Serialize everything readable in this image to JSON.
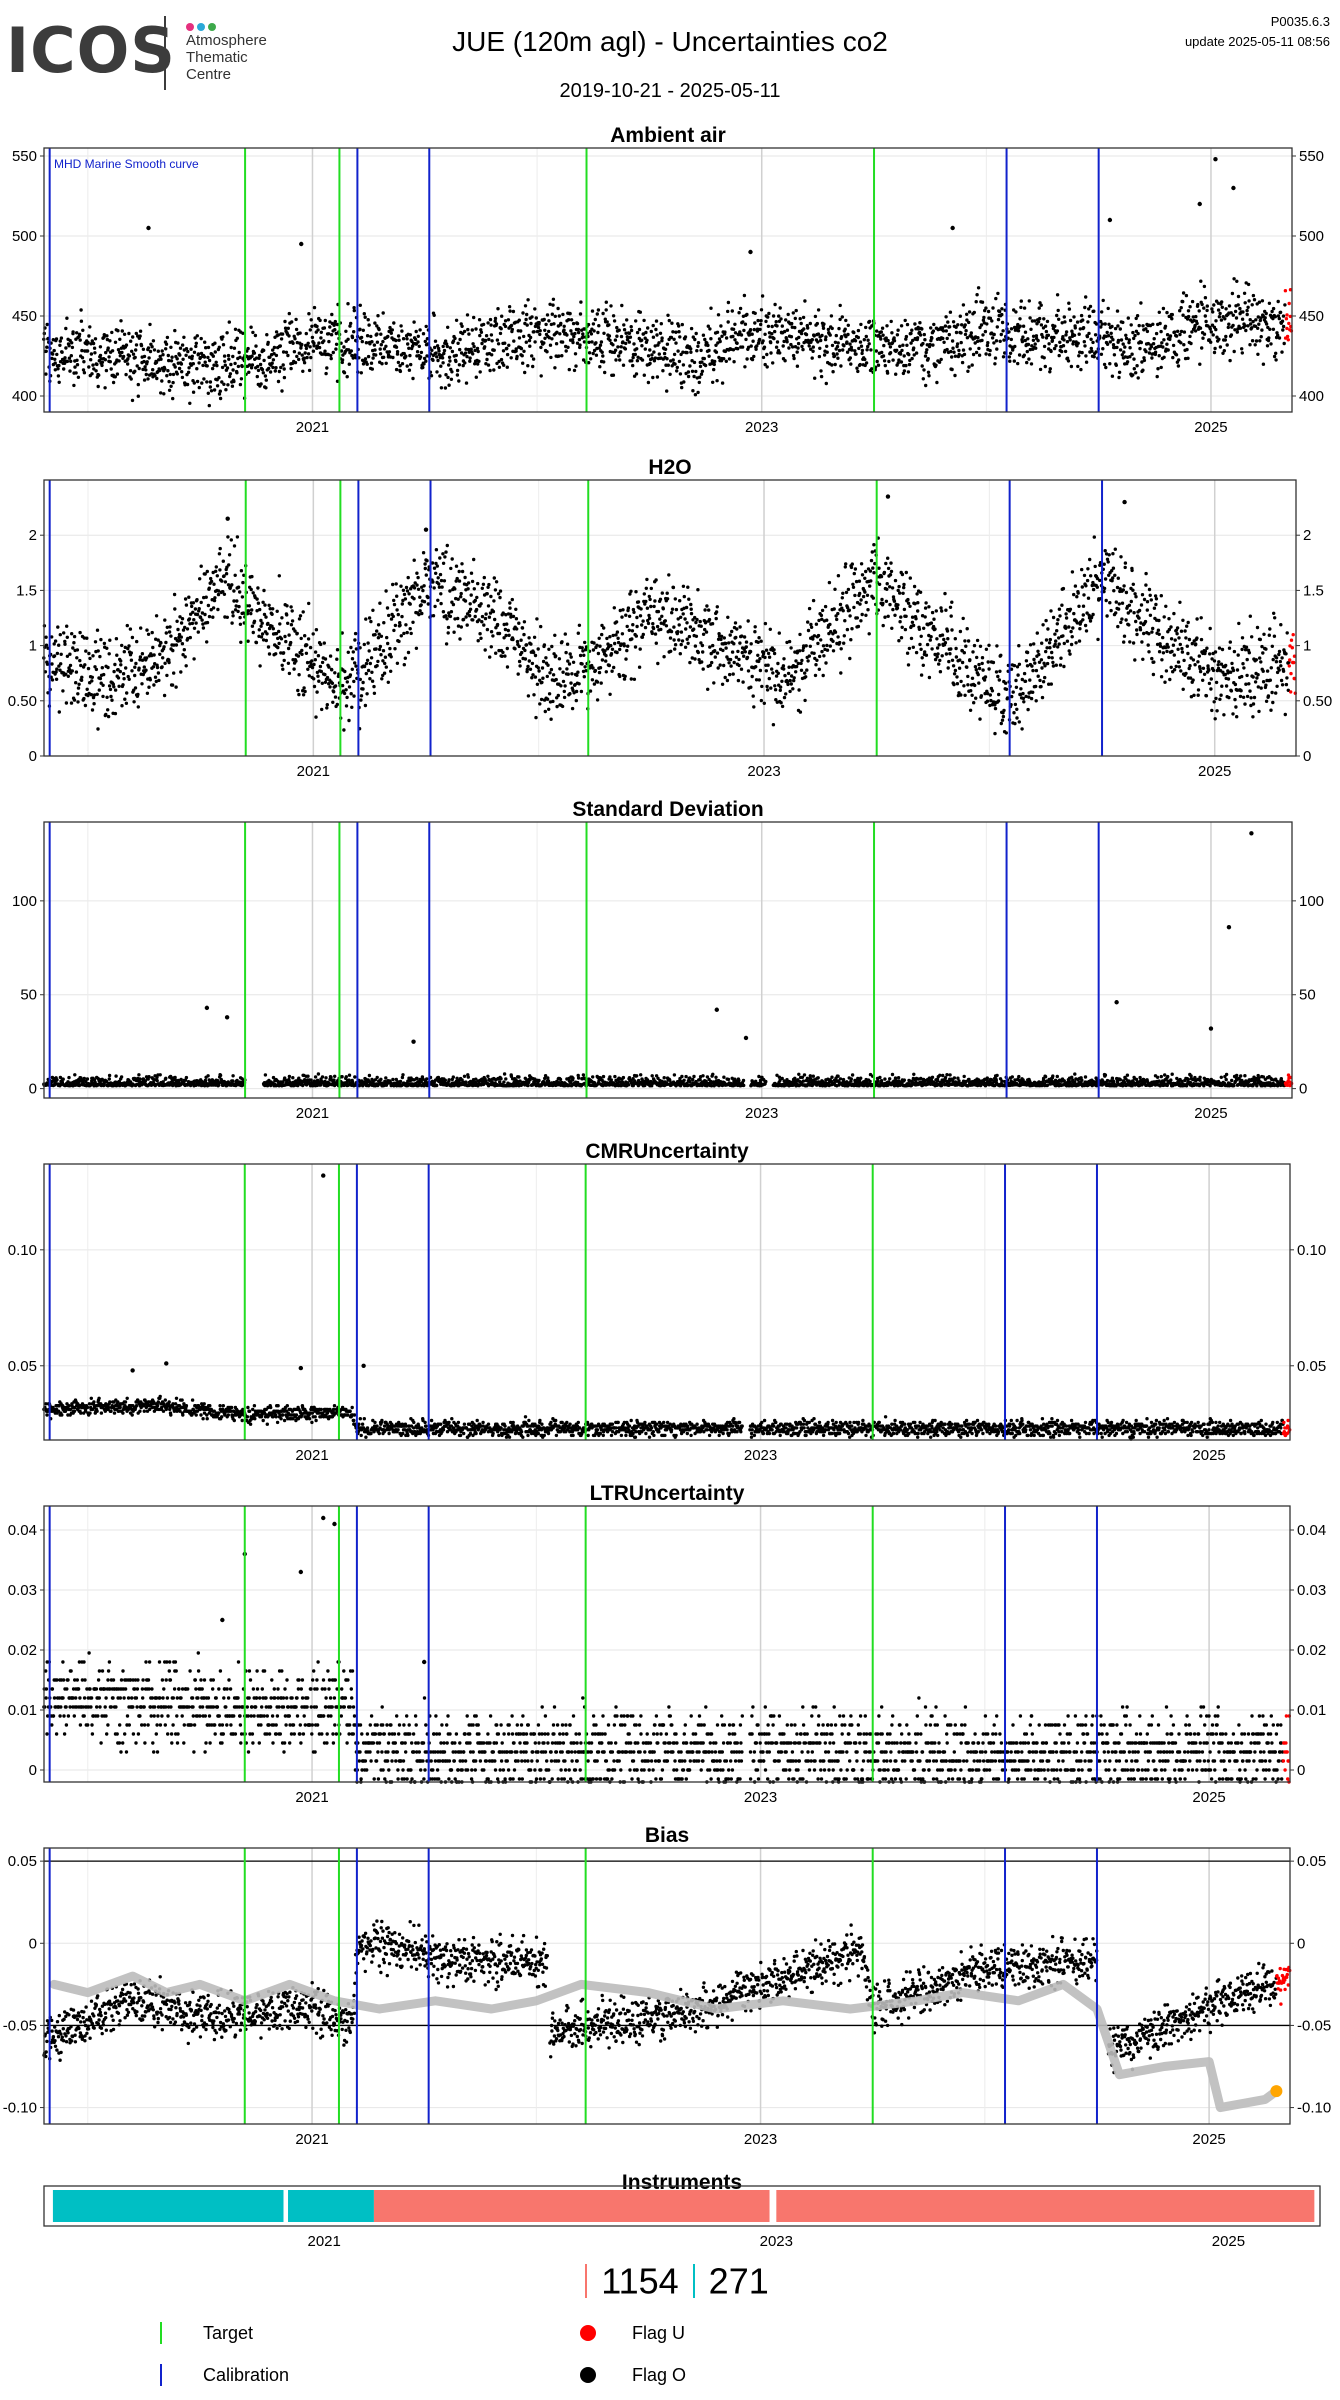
{
  "header": {
    "logo_text": "ICOS",
    "logo_sub": [
      "Atmosphere",
      "Thematic",
      "Centre"
    ],
    "title": "JUE  (120m agl) - Uncertainties co2",
    "date_range": "2019-10-21 - 2025-05-11",
    "version": "P0035.6.3",
    "update": "update  2025-05-11 08:56"
  },
  "colors": {
    "target": "#22dd22",
    "calibration": "#1122cc",
    "flag_u": "#ff0000",
    "flag_o": "#000000",
    "smooth_curve": "#bbbbbb",
    "orange": "#ffa500",
    "instrument_a": "#00bfc4",
    "instrument_b": "#f8766d"
  },
  "chart_data": [
    {
      "type": "scatter",
      "title": "Ambient air",
      "annotation": "MHD Marine Smooth curve",
      "ylim": [
        390,
        555
      ],
      "yticks": [
        400,
        450,
        500,
        550
      ],
      "xticks": [
        "2021",
        "2023",
        "2025"
      ],
      "x_range": [
        "2019-10-21",
        "2025-05-11"
      ],
      "baseline": [
        [
          2019.8,
          428
        ],
        [
          2020.3,
          422
        ],
        [
          2020.6,
          418
        ],
        [
          2021.0,
          434
        ],
        [
          2021.3,
          432
        ],
        [
          2021.6,
          425
        ],
        [
          2022.0,
          440
        ],
        [
          2022.4,
          432
        ],
        [
          2022.7,
          425
        ],
        [
          2023.0,
          440
        ],
        [
          2023.4,
          432
        ],
        [
          2023.7,
          428
        ],
        [
          2024.0,
          442
        ],
        [
          2024.4,
          436
        ],
        [
          2024.7,
          430
        ],
        [
          2025.0,
          448
        ],
        [
          2025.3,
          444
        ]
      ],
      "spread": 18,
      "outliers": [
        [
          2020.27,
          505
        ],
        [
          2020.95,
          495
        ],
        [
          2022.95,
          490
        ],
        [
          2023.85,
          505
        ],
        [
          2024.55,
          510
        ],
        [
          2024.95,
          520
        ],
        [
          2025.02,
          548
        ],
        [
          2025.1,
          530
        ]
      ],
      "flag_u_from": 2025.33
    },
    {
      "type": "scatter",
      "title": "H2O",
      "ylim": [
        0,
        2.5
      ],
      "yticks": [
        0.0,
        0.5,
        1.0,
        1.5,
        2.0
      ],
      "xticks": [
        "2021",
        "2023",
        "2025"
      ],
      "x_range": [
        "2019-10-21",
        "2025-05-11"
      ],
      "baseline": [
        [
          2019.8,
          0.9
        ],
        [
          2020.1,
          0.7
        ],
        [
          2020.35,
          0.9
        ],
        [
          2020.6,
          1.6
        ],
        [
          2020.9,
          1.0
        ],
        [
          2021.15,
          0.6
        ],
        [
          2021.5,
          1.6
        ],
        [
          2021.8,
          1.3
        ],
        [
          2022.1,
          0.6
        ],
        [
          2022.5,
          1.3
        ],
        [
          2022.8,
          1.0
        ],
        [
          2023.1,
          0.7
        ],
        [
          2023.5,
          1.6
        ],
        [
          2023.8,
          1.0
        ],
        [
          2024.1,
          0.5
        ],
        [
          2024.5,
          1.6
        ],
        [
          2024.8,
          1.0
        ],
        [
          2025.1,
          0.7
        ],
        [
          2025.35,
          0.9
        ]
      ],
      "spread": 0.35,
      "outliers": [
        [
          2020.62,
          2.15
        ],
        [
          2021.5,
          2.05
        ],
        [
          2023.55,
          2.35
        ],
        [
          2024.6,
          2.3
        ]
      ],
      "flag_u_from": 2025.33
    },
    {
      "type": "scatter",
      "title": "Standard Deviation",
      "ylim": [
        -5,
        142
      ],
      "yticks": [
        0,
        50,
        100
      ],
      "xticks": [
        "2021",
        "2023",
        "2025"
      ],
      "x_range": [
        "2019-10-21",
        "2025-05-11"
      ],
      "baseline": [
        [
          2019.8,
          1.5
        ],
        [
          2025.35,
          1.5
        ]
      ],
      "spread": 3,
      "outliers": [
        [
          2020.53,
          43
        ],
        [
          2020.62,
          38
        ],
        [
          2021.45,
          25
        ],
        [
          2022.8,
          42
        ],
        [
          2022.93,
          27
        ],
        [
          2024.58,
          46
        ],
        [
          2025.0,
          32
        ],
        [
          2025.08,
          86
        ],
        [
          2025.18,
          136
        ]
      ],
      "gaps": [
        [
          2020.7,
          2020.78
        ],
        [
          2022.92,
          2022.95
        ],
        [
          2023.02,
          2023.05
        ]
      ],
      "flag_u_from": 2025.33
    },
    {
      "type": "scatter",
      "title": "CMRUncertainty",
      "ylim": [
        0.018,
        0.137
      ],
      "yticks": [
        0.05,
        0.1
      ],
      "xticks": [
        "2021",
        "2023",
        "2025"
      ],
      "x_range": [
        "2019-10-21",
        "2025-05-11"
      ],
      "baseline": [
        [
          2019.8,
          0.031
        ],
        [
          2020.3,
          0.033
        ],
        [
          2020.7,
          0.029
        ],
        [
          2021.18,
          0.03
        ],
        [
          2021.2,
          0.023
        ],
        [
          2025.35,
          0.023
        ]
      ],
      "spread": 0.003,
      "outliers": [
        [
          2020.2,
          0.048
        ],
        [
          2020.35,
          0.051
        ],
        [
          2020.95,
          0.049
        ],
        [
          2021.05,
          0.132
        ],
        [
          2021.23,
          0.05
        ]
      ],
      "gaps": [
        [
          2022.92,
          2022.95
        ]
      ],
      "flag_u_from": 2025.33
    },
    {
      "type": "scatter",
      "title": "LTRUncertainty",
      "ylim": [
        -0.002,
        0.044
      ],
      "yticks": [
        0.0,
        0.01,
        0.02,
        0.03,
        0.04
      ],
      "xticks": [
        "2021",
        "2023",
        "2025"
      ],
      "x_range": [
        "2019-10-21",
        "2025-05-11"
      ],
      "baseline": [
        [
          2019.8,
          0.012
        ],
        [
          2020.6,
          0.01
        ],
        [
          2021.0,
          0.01
        ],
        [
          2021.18,
          0.011
        ],
        [
          2021.2,
          0.003
        ],
        [
          2025.35,
          0.003
        ]
      ],
      "spread": 0.006,
      "outliers": [
        [
          2020.7,
          0.036
        ],
        [
          2020.95,
          0.033
        ],
        [
          2021.05,
          0.042
        ],
        [
          2021.1,
          0.041
        ],
        [
          2020.6,
          0.025
        ],
        [
          2021.5,
          0.018
        ]
      ],
      "gaps": [
        [
          2022.92,
          2022.95
        ]
      ],
      "flag_u_from": 2025.33
    },
    {
      "type": "scatter",
      "title": "Bias",
      "ylim": [
        -0.11,
        0.058
      ],
      "yticks": [
        -0.1,
        -0.05,
        0.0,
        0.05
      ],
      "hlines": [
        0.05,
        -0.05
      ],
      "xticks": [
        "2021",
        "2023",
        "2025"
      ],
      "x_range": [
        "2019-10-21",
        "2025-05-11"
      ],
      "baseline": [
        [
          2019.8,
          -0.06
        ],
        [
          2020.2,
          -0.035
        ],
        [
          2020.6,
          -0.045
        ],
        [
          2021.0,
          -0.04
        ],
        [
          2021.18,
          -0.05
        ],
        [
          2021.2,
          0.0
        ],
        [
          2021.5,
          -0.005
        ],
        [
          2021.55,
          -0.01
        ],
        [
          2022.05,
          -0.012
        ],
        [
          2022.06,
          -0.055
        ],
        [
          2022.5,
          -0.045
        ],
        [
          2022.85,
          -0.035
        ],
        [
          2022.9,
          -0.03
        ],
        [
          2023.45,
          -0.005
        ],
        [
          2023.5,
          -0.04
        ],
        [
          2024.0,
          -0.015
        ],
        [
          2024.5,
          -0.01
        ],
        [
          2024.55,
          -0.065
        ],
        [
          2025.35,
          -0.02
        ]
      ],
      "spread": 0.012,
      "gaps": [
        [
          2022.05,
          2022.06
        ],
        [
          2024.5,
          2024.55
        ]
      ],
      "smooth_curve": [
        [
          2019.85,
          -0.025
        ],
        [
          2020.0,
          -0.03
        ],
        [
          2020.2,
          -0.02
        ],
        [
          2020.35,
          -0.03
        ],
        [
          2020.5,
          -0.025
        ],
        [
          2020.7,
          -0.035
        ],
        [
          2020.9,
          -0.025
        ],
        [
          2021.1,
          -0.035
        ],
        [
          2021.3,
          -0.04
        ],
        [
          2021.55,
          -0.035
        ],
        [
          2021.8,
          -0.04
        ],
        [
          2022.0,
          -0.035
        ],
        [
          2022.2,
          -0.025
        ],
        [
          2022.5,
          -0.03
        ],
        [
          2022.8,
          -0.04
        ],
        [
          2023.1,
          -0.035
        ],
        [
          2023.4,
          -0.04
        ],
        [
          2023.7,
          -0.035
        ],
        [
          2023.9,
          -0.03
        ],
        [
          2024.15,
          -0.035
        ],
        [
          2024.35,
          -0.025
        ],
        [
          2024.5,
          -0.04
        ],
        [
          2024.6,
          -0.08
        ],
        [
          2024.8,
          -0.075
        ],
        [
          2025.0,
          -0.072
        ],
        [
          2025.05,
          -0.1
        ],
        [
          2025.25,
          -0.095
        ],
        [
          2025.3,
          -0.09
        ]
      ],
      "flag_u_from": 2025.3
    },
    {
      "type": "bar",
      "title": "Instruments",
      "xticks": [
        "2021",
        "2023",
        "2025"
      ],
      "segments": [
        {
          "from": 2019.8,
          "to": 2020.82,
          "instrument": "271"
        },
        {
          "from": 2020.84,
          "to": 2021.22,
          "instrument": "271"
        },
        {
          "from": 2021.22,
          "to": 2022.97,
          "instrument": "1154"
        },
        {
          "from": 2023.0,
          "to": 2025.38,
          "instrument": "1154"
        }
      ]
    }
  ],
  "events": {
    "target": [
      2020.7,
      2021.12,
      2022.22,
      2023.5
    ],
    "calibration": [
      2019.83,
      2021.2,
      2021.52,
      2024.09,
      2024.5
    ]
  },
  "stats": {
    "instrument_b_label": "1154",
    "instrument_a_label": "271"
  },
  "legend": {
    "target": "Target",
    "calibration": "Calibration",
    "flag_u": "Flag U",
    "flag_o": "Flag O"
  }
}
